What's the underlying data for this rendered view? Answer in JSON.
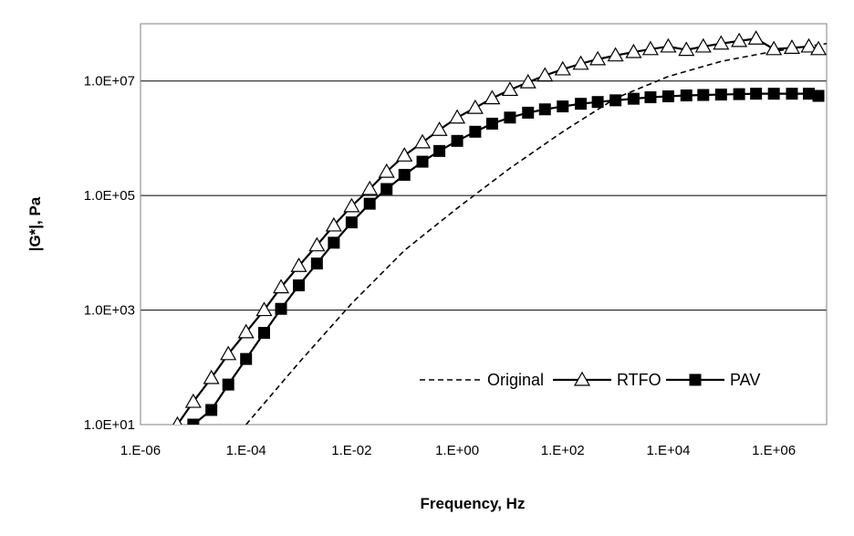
{
  "chart_data": {
    "type": "line",
    "xscale": "log",
    "yscale": "log",
    "xlabel": "Frequency, Hz",
    "ylabel": "|G*|, Pa",
    "xlim": [
      1e-06,
      10000000.0
    ],
    "ylim": [
      10,
      100000000.0
    ],
    "x_ticks": [
      {
        "value": 1e-06,
        "label": "1.E-06"
      },
      {
        "value": 0.0001,
        "label": "1.E-04"
      },
      {
        "value": 0.01,
        "label": "1.E-02"
      },
      {
        "value": 1,
        "label": "1.E+00"
      },
      {
        "value": 100,
        "label": "1.E+02"
      },
      {
        "value": 10000.0,
        "label": "1.E+04"
      },
      {
        "value": 1000000.0,
        "label": "1.E+06"
      }
    ],
    "y_ticks": [
      {
        "value": 10,
        "label": "1.0E+01"
      },
      {
        "value": 1000,
        "label": "1.0E+03"
      },
      {
        "value": 100000,
        "label": "1.0E+05"
      },
      {
        "value": 10000000,
        "label": "1.0E+07"
      }
    ],
    "grid": "horizontal major lines",
    "legend_position": "bottom-right, inside plot",
    "series": [
      {
        "name": "Original",
        "style": "dashed",
        "marker": "none",
        "color": "#000000",
        "x": [
          0.0001,
          0.001,
          0.01,
          0.1,
          1,
          10,
          100,
          1000,
          10000,
          100000,
          1000000,
          10000000
        ],
        "y": [
          10,
          120,
          1300,
          11000,
          60000,
          300000,
          1300000,
          5000000,
          12000000,
          22000000,
          33000000,
          45000000
        ]
      },
      {
        "name": "RTFO",
        "style": "solid",
        "marker": "open-triangle",
        "color": "#000000",
        "x": [
          5e-06,
          1e-05,
          2.2e-05,
          4.6e-05,
          0.0001,
          0.00022,
          0.00046,
          0.001,
          0.0022,
          0.0046,
          0.01,
          0.022,
          0.046,
          0.1,
          0.22,
          0.46,
          1,
          2.2,
          4.6,
          10,
          22,
          46,
          100,
          220,
          460,
          1000,
          2200,
          4600,
          10000,
          22000,
          46000,
          100000,
          220000,
          460000,
          1000000,
          2200000,
          4600000,
          7000000
        ],
        "y": [
          10,
          25,
          65,
          170,
          410,
          1000,
          2500,
          5900,
          13500,
          30000,
          65000,
          130000,
          260000,
          500000,
          850000,
          1400000,
          2300000,
          3400000,
          5000000,
          7000000,
          9500000,
          12500000,
          16000000,
          20000000,
          24000000,
          28000000,
          32000000,
          36000000,
          40000000,
          35000000,
          40000000,
          45000000,
          50000000,
          55000000,
          36000000,
          38000000,
          40000000,
          36000000
        ]
      },
      {
        "name": "PAV",
        "style": "solid",
        "marker": "filled-square",
        "color": "#000000",
        "x": [
          1e-05,
          2.2e-05,
          4.6e-05,
          0.0001,
          0.00022,
          0.00046,
          0.001,
          0.0022,
          0.0046,
          0.01,
          0.022,
          0.046,
          0.1,
          0.22,
          0.46,
          1,
          2.2,
          4.6,
          10,
          22,
          46,
          100,
          220,
          460,
          1000,
          2200,
          4600,
          10000,
          22000,
          46000,
          100000,
          220000,
          460000,
          1000000,
          2200000,
          4600000,
          7000000
        ],
        "y": [
          10,
          18,
          50,
          140,
          400,
          1050,
          2700,
          6500,
          15000,
          34000,
          72000,
          130000,
          230000,
          390000,
          600000,
          900000,
          1300000,
          1800000,
          2300000,
          2800000,
          3200000,
          3600000,
          4000000,
          4300000,
          4600000,
          4900000,
          5200000,
          5400000,
          5600000,
          5700000,
          5800000,
          5900000,
          6000000,
          6000000,
          6000000,
          6000000,
          5500000
        ]
      }
    ]
  }
}
